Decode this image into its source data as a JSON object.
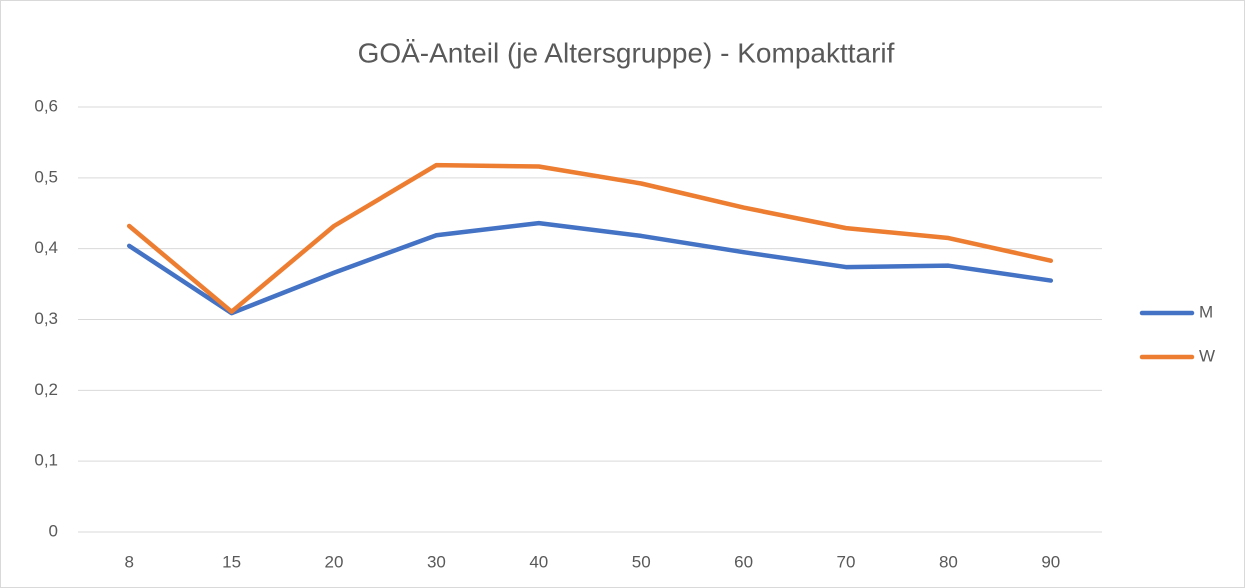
{
  "chart_data": {
    "type": "line",
    "title": "GOÄ-Anteil (je Altersgruppe) - Kompakttarif",
    "categories": [
      "8",
      "15",
      "20",
      "30",
      "40",
      "50",
      "60",
      "70",
      "80",
      "90"
    ],
    "series": [
      {
        "name": "M",
        "color": "#4472c4",
        "values": [
          0.404,
          0.309,
          0.366,
          0.419,
          0.436,
          0.418,
          0.395,
          0.374,
          0.376,
          0.355
        ]
      },
      {
        "name": "W",
        "color": "#ed7d31",
        "values": [
          0.432,
          0.311,
          0.432,
          0.518,
          0.516,
          0.492,
          0.458,
          0.429,
          0.415,
          0.383
        ]
      }
    ],
    "ylim": [
      0,
      0.6
    ],
    "yticks": [
      0,
      {
        "value": 0.1,
        "label": "0,1"
      },
      {
        "value": 0.2,
        "label": "0,2"
      },
      {
        "value": 0.3,
        "label": "0,3"
      },
      {
        "value": 0.4,
        "label": "0,4"
      },
      {
        "value": 0.5,
        "label": "0,5"
      },
      {
        "value": 0.6,
        "label": "0,6"
      }
    ],
    "grid": true,
    "legend": "right"
  }
}
